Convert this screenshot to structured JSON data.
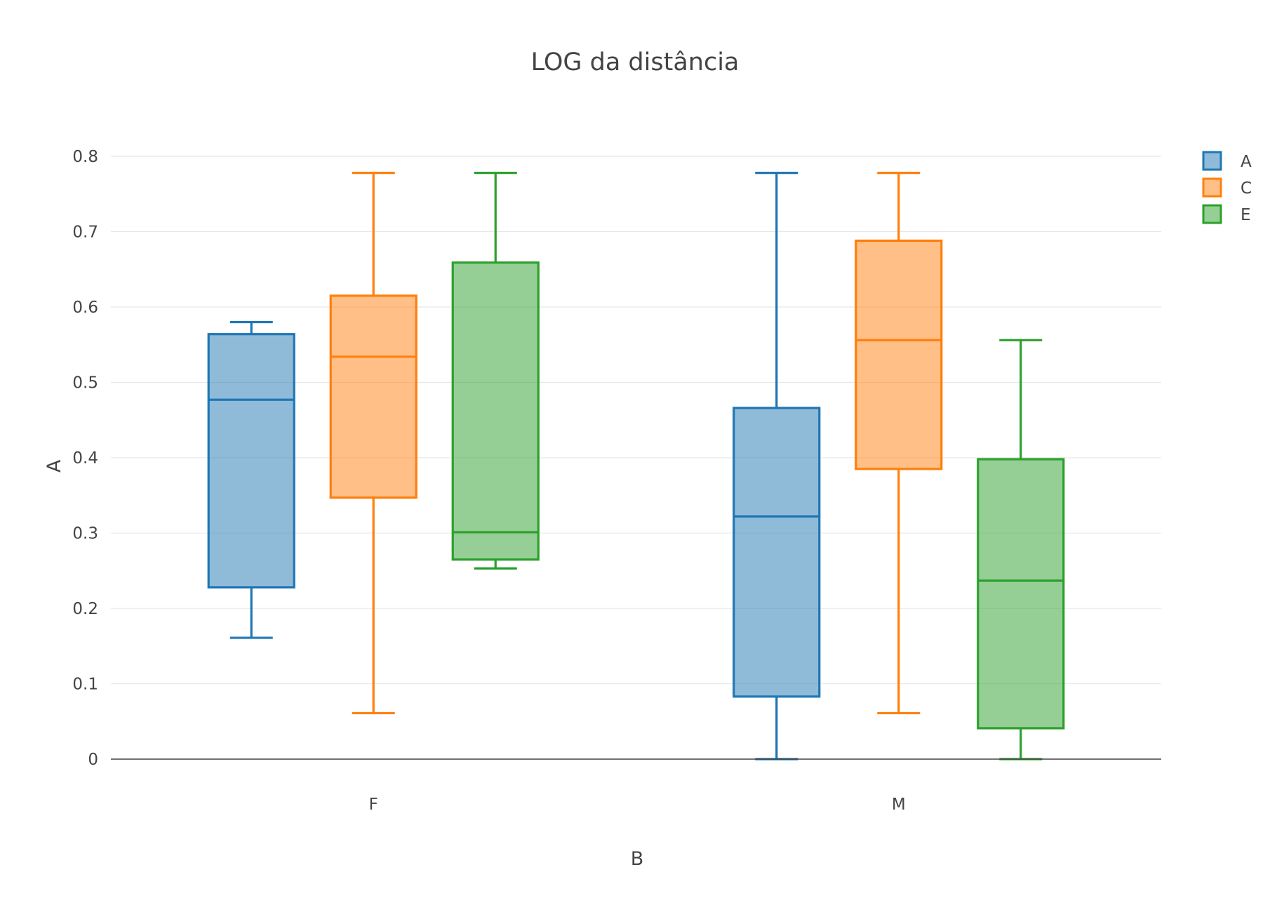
{
  "chart_data": {
    "type": "box",
    "title": "LOG da distância",
    "xlabel": "B",
    "ylabel": "A",
    "categories": [
      "F",
      "M"
    ],
    "ylim": [
      0,
      0.8
    ],
    "yticks": [
      "0",
      "0.1",
      "0.2",
      "0.3",
      "0.4",
      "0.5",
      "0.6",
      "0.7",
      "0.8"
    ],
    "grid": true,
    "legend_position": "top-right",
    "series": [
      {
        "name": "A",
        "color": "#1f77b4",
        "fill": "rgba(31,119,180,0.5)",
        "boxes": [
          {
            "category": "F",
            "min": 0.161,
            "q1": 0.228,
            "median": 0.477,
            "q3": 0.564,
            "max": 0.58
          },
          {
            "category": "M",
            "min": 0.0,
            "q1": 0.083,
            "median": 0.322,
            "q3": 0.466,
            "max": 0.778
          }
        ]
      },
      {
        "name": "C",
        "color": "#ff7f0e",
        "fill": "rgba(255,127,14,0.5)",
        "boxes": [
          {
            "category": "F",
            "min": 0.061,
            "q1": 0.347,
            "median": 0.534,
            "q3": 0.615,
            "max": 0.778
          },
          {
            "category": "M",
            "min": 0.061,
            "q1": 0.385,
            "median": 0.556,
            "q3": 0.688,
            "max": 0.778
          }
        ]
      },
      {
        "name": "E",
        "color": "#2ca02c",
        "fill": "rgba(44,160,44,0.5)",
        "boxes": [
          {
            "category": "F",
            "min": 0.253,
            "q1": 0.265,
            "median": 0.301,
            "q3": 0.659,
            "max": 0.778
          },
          {
            "category": "M",
            "min": 0.0,
            "q1": 0.041,
            "median": 0.237,
            "q3": 0.398,
            "max": 0.556
          }
        ]
      }
    ]
  }
}
